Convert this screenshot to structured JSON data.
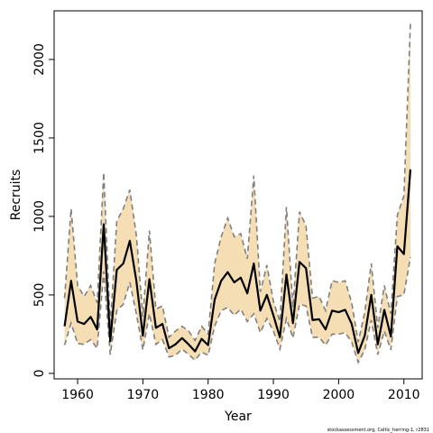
{
  "chart_data": {
    "type": "line",
    "xlabel": "Year",
    "ylabel": "Recruits",
    "xlim": [
      1956.4,
      2012.8
    ],
    "ylim": [
      -35,
      2310
    ],
    "xticks": [
      1960,
      1970,
      1980,
      1990,
      2000,
      2010
    ],
    "yticks": [
      0,
      500,
      1000,
      1500,
      2000
    ],
    "grid": false,
    "legend": "none",
    "colors": {
      "band": "#f5deb3",
      "median": "#000000",
      "bounds": "#808080"
    },
    "footnote": "stockassessment.org, Celtic_herring-1, r2831",
    "x": [
      1958,
      1959,
      1960,
      1961,
      1962,
      1963,
      1964,
      1965,
      1966,
      1967,
      1968,
      1969,
      1970,
      1971,
      1972,
      1973,
      1974,
      1975,
      1976,
      1977,
      1978,
      1979,
      1980,
      1981,
      1982,
      1983,
      1984,
      1985,
      1986,
      1987,
      1988,
      1989,
      1990,
      1991,
      1992,
      1993,
      1994,
      1995,
      1996,
      1997,
      1998,
      1999,
      2000,
      2001,
      2002,
      2003,
      2004,
      2005,
      2006,
      2007,
      2008,
      2009,
      2010,
      2011
    ],
    "series": [
      {
        "name": "",
        "role": "estimate",
        "values": [
          300,
          590,
          330,
          315,
          360,
          280,
          950,
          205,
          660,
          700,
          845,
          590,
          240,
          600,
          290,
          315,
          160,
          185,
          225,
          185,
          140,
          220,
          180,
          470,
          590,
          645,
          580,
          610,
          510,
          700,
          400,
          500,
          370,
          230,
          630,
          320,
          710,
          670,
          340,
          345,
          280,
          400,
          390,
          405,
          315,
          130,
          240,
          500,
          185,
          405,
          235,
          810,
          760,
          1300
        ]
      },
      {
        "name": "",
        "role": "upper",
        "values": [
          480,
          1050,
          560,
          490,
          560,
          450,
          1280,
          300,
          970,
          1050,
          1170,
          880,
          360,
          910,
          410,
          430,
          230,
          270,
          300,
          270,
          210,
          300,
          250,
          700,
          870,
          990,
          870,
          890,
          730,
          1260,
          520,
          690,
          460,
          330,
          1060,
          420,
          1030,
          940,
          480,
          490,
          400,
          590,
          580,
          590,
          450,
          200,
          390,
          700,
          290,
          560,
          380,
          1010,
          1130,
          2230
        ]
      },
      {
        "name": "",
        "role": "lower",
        "values": [
          180,
          320,
          190,
          185,
          215,
          160,
          650,
          120,
          400,
          440,
          580,
          380,
          150,
          380,
          185,
          215,
          105,
          115,
          155,
          120,
          85,
          135,
          115,
          300,
          400,
          420,
          370,
          410,
          330,
          380,
          260,
          350,
          270,
          155,
          350,
          225,
          440,
          430,
          230,
          230,
          180,
          250,
          250,
          260,
          200,
          70,
          150,
          340,
          120,
          270,
          150,
          490,
          500,
          740
        ]
      }
    ]
  }
}
